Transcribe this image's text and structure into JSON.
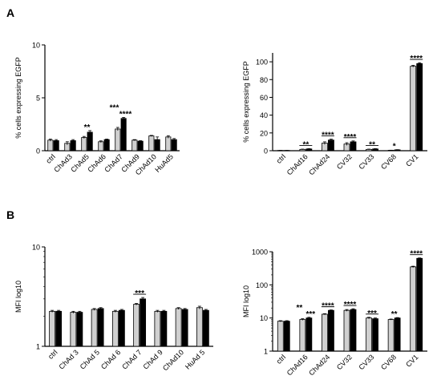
{
  "panels": {
    "a": "A",
    "b": "B"
  },
  "colors": {
    "light_bar": "#d0d0d0",
    "dark_bar": "#000000",
    "axis": "#000000"
  },
  "chart_data": [
    {
      "type": "bar",
      "ylabel": "% cells expressing EGFP",
      "scale": "linear",
      "ylim": [
        0,
        10
      ],
      "yticks": [
        "0",
        "5",
        "10"
      ],
      "categories": [
        "ctrl",
        "ChAd3",
        "ChAd5",
        "ChAd6",
        "ChAd7",
        "ChAd9",
        "ChAd10",
        "HuAd5"
      ],
      "series": [
        {
          "values": [
            1.0,
            0.7,
            1.25,
            0.85,
            2.05,
            1.0,
            1.4,
            1.3
          ],
          "errors": [
            0.1,
            0.15,
            0.1,
            0.08,
            0.15,
            0.05,
            0.05,
            0.12
          ]
        },
        {
          "values": [
            0.95,
            0.95,
            1.75,
            1.05,
            3.05,
            0.9,
            1.05,
            1.05
          ],
          "errors": [
            0.1,
            0.1,
            0.15,
            0.05,
            0.1,
            0.05,
            0.25,
            0.1
          ]
        }
      ],
      "annotations": [
        {
          "category": 2,
          "text": "**",
          "bar": false
        },
        {
          "category": 4,
          "text": "***",
          "side": "left",
          "bar": false
        },
        {
          "category": 4,
          "text": "****",
          "side": "right",
          "bar": false
        }
      ]
    },
    {
      "type": "bar",
      "ylabel": "% cells expressing EGFP",
      "scale": "linear",
      "ylim": [
        0,
        110
      ],
      "yticks": [
        "0",
        "20",
        "40",
        "60",
        "80",
        "100"
      ],
      "categories": [
        "ctrl",
        "ChAd16",
        "ChAd24",
        "CV32",
        "CV33",
        "CV68",
        "CV1"
      ],
      "series": [
        {
          "values": [
            0.3,
            1.5,
            8.5,
            7.5,
            1.5,
            0.5,
            95
          ],
          "errors": [
            0.1,
            0.3,
            1.5,
            1.5,
            0.3,
            0.1,
            1.0
          ]
        },
        {
          "values": [
            0.3,
            2.0,
            12.0,
            10.0,
            2.0,
            1.0,
            98
          ],
          "errors": [
            0.1,
            0.3,
            1.0,
            1.0,
            0.3,
            0.2,
            1.0
          ]
        }
      ],
      "annotations": [
        {
          "category": 1,
          "text": "**",
          "bar": true
        },
        {
          "category": 2,
          "text": "****",
          "bar": true
        },
        {
          "category": 3,
          "text": "****",
          "bar": true
        },
        {
          "category": 4,
          "text": "**",
          "bar": true
        },
        {
          "category": 5,
          "text": "*",
          "bar": false
        },
        {
          "category": 6,
          "text": "****",
          "bar": true
        }
      ]
    },
    {
      "type": "bar",
      "ylabel": "MFI log10",
      "scale": "log",
      "ylim": [
        1,
        10
      ],
      "yticks": [
        "1",
        "10"
      ],
      "categories": [
        "ctrl",
        "ChAd 3",
        "ChAd 5",
        "ChAd 6",
        "ChAd 7",
        "ChAd 9",
        "ChAd10",
        "HuAd 5"
      ],
      "series": [
        {
          "values": [
            2.25,
            2.2,
            2.35,
            2.25,
            2.65,
            2.25,
            2.4,
            2.45
          ],
          "errors": [
            0.05,
            0.05,
            0.05,
            0.05,
            0.05,
            0.05,
            0.05,
            0.08
          ]
        },
        {
          "values": [
            2.25,
            2.2,
            2.4,
            2.3,
            3.0,
            2.25,
            2.35,
            2.3
          ],
          "errors": [
            0.05,
            0.05,
            0.05,
            0.05,
            0.1,
            0.05,
            0.05,
            0.05
          ]
        }
      ],
      "annotations": [
        {
          "category": 4,
          "text": "***",
          "bar": true
        }
      ]
    },
    {
      "type": "bar",
      "ylabel": "MFI log10",
      "scale": "log",
      "ylim": [
        1,
        1000
      ],
      "yticks": [
        "1",
        "10",
        "100",
        "1000"
      ],
      "categories": [
        "ctrl",
        "ChAd16",
        "ChAd24",
        "CV32",
        "CV33",
        "CV68",
        "CV1"
      ],
      "series": [
        {
          "values": [
            8,
            9,
            13,
            17,
            10,
            9,
            350
          ],
          "errors": [
            0.3,
            0.5,
            0.5,
            1,
            0.5,
            0.3,
            15
          ]
        },
        {
          "values": [
            8,
            10,
            17,
            18,
            9.5,
            10,
            630
          ],
          "errors": [
            0.3,
            0.5,
            0.5,
            1,
            0.5,
            0.3,
            20
          ]
        }
      ],
      "annotations": [
        {
          "category": 1,
          "text": "**",
          "side": "left",
          "bar": false
        },
        {
          "category": 1,
          "text": "***",
          "side": "right",
          "bar": false
        },
        {
          "category": 2,
          "text": "****",
          "bar": true
        },
        {
          "category": 3,
          "text": "****",
          "bar": true
        },
        {
          "category": 4,
          "text": "***",
          "bar": true
        },
        {
          "category": 5,
          "text": "**",
          "bar": false
        },
        {
          "category": 6,
          "text": "****",
          "bar": true
        }
      ]
    }
  ]
}
